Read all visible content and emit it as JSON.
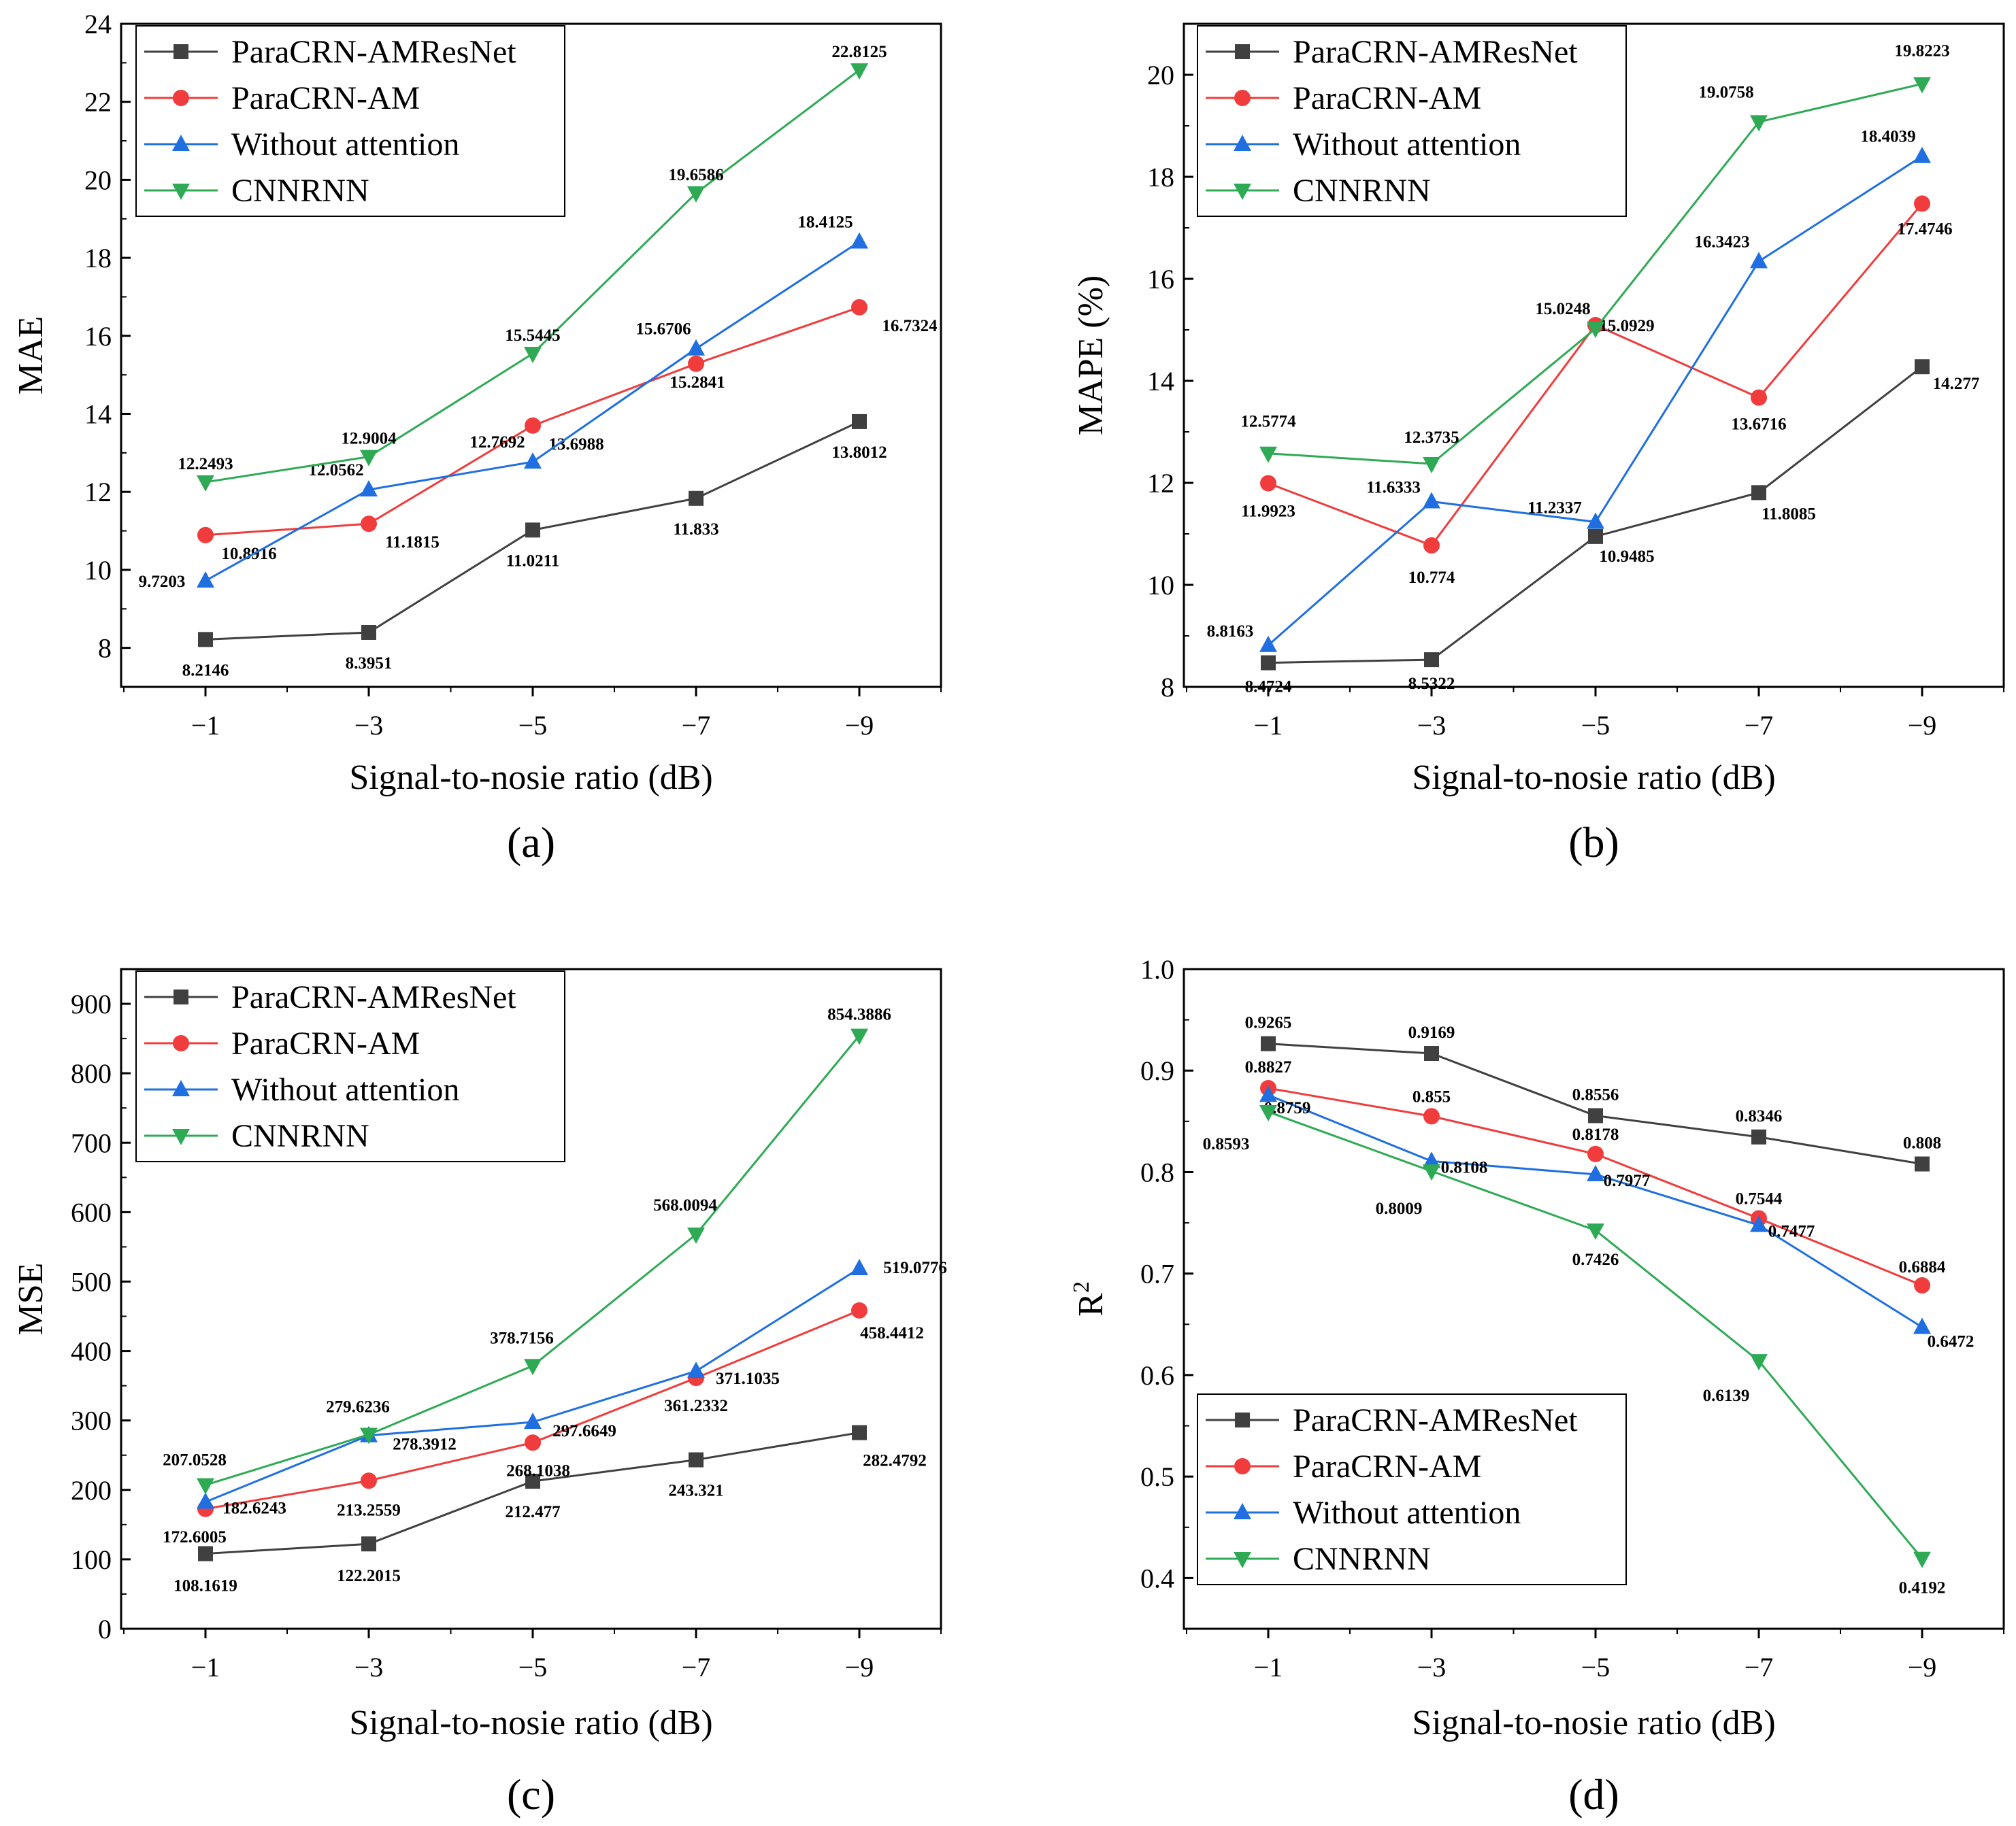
{
  "figure": {
    "series_styles": [
      {
        "name": "ParaCRN-AMResNet",
        "color": "#404040",
        "marker": "square"
      },
      {
        "name": "ParaCRN-AM",
        "color": "#f03c3c",
        "marker": "circle"
      },
      {
        "name": "Without attention",
        "color": "#1f6fe0",
        "marker": "triangle-up"
      },
      {
        "name": "CNNRNN",
        "color": "#2eaa55",
        "marker": "triangle-down"
      }
    ]
  },
  "chart_data": [
    {
      "type": "line",
      "panel_label": "(a)",
      "xlabel": "Signal-to-nosie ratio (dB)",
      "ylabel": "MAE",
      "ylabel_sup": "",
      "categories": [
        "−1",
        "−3",
        "−5",
        "−7",
        "−9"
      ],
      "ylim": [
        7,
        24
      ],
      "yticks": [
        8,
        10,
        12,
        14,
        16,
        18,
        20,
        22,
        24
      ],
      "ytick_labels": [
        "8",
        "10",
        "12",
        "14",
        "16",
        "18",
        "20",
        "22",
        "24"
      ],
      "legend_position": "top-left",
      "series": [
        {
          "name": "ParaCRN-AMResNet",
          "values": [
            8.2146,
            8.3951,
            11.0211,
            11.833,
            13.8012
          ],
          "labels": [
            "8.2146",
            "8.3951",
            "11.0211",
            "11.833",
            "13.8012"
          ]
        },
        {
          "name": "ParaCRN-AM",
          "values": [
            10.8916,
            11.1815,
            13.6988,
            15.2841,
            16.7324
          ],
          "labels": [
            "10.8916",
            "11.1815",
            "13.6988",
            "15.2841",
            "16.7324"
          ]
        },
        {
          "name": "Without attention",
          "values": [
            9.7203,
            12.0562,
            12.7692,
            15.6706,
            18.4125
          ],
          "labels": [
            "9.7203",
            "12.0562",
            "12.7692",
            "15.6706",
            "18.4125"
          ]
        },
        {
          "name": "CNNRNN",
          "values": [
            12.2493,
            12.9004,
            15.5445,
            19.6586,
            22.8125
          ],
          "labels": [
            "12.2493",
            "12.9004",
            "15.5445",
            "19.6586",
            "22.8125"
          ]
        }
      ]
    },
    {
      "type": "line",
      "panel_label": "(b)",
      "xlabel": "Signal-to-nosie ratio (dB)",
      "ylabel": "MAPE (%)",
      "ylabel_sup": "",
      "categories": [
        "−1",
        "−3",
        "−5",
        "−7",
        "−9"
      ],
      "ylim": [
        8,
        21
      ],
      "yticks": [
        8,
        10,
        12,
        14,
        16,
        18,
        20
      ],
      "ytick_labels": [
        "8",
        "10",
        "12",
        "14",
        "16",
        "18",
        "20"
      ],
      "legend_position": "top-left",
      "series": [
        {
          "name": "ParaCRN-AMResNet",
          "values": [
            8.4724,
            8.5322,
            10.9485,
            11.8085,
            14.277
          ],
          "labels": [
            "8.4724",
            "8.5322",
            "10.9485",
            "11.8085",
            "14.277"
          ]
        },
        {
          "name": "ParaCRN-AM",
          "values": [
            11.9923,
            10.774,
            15.0929,
            13.6716,
            17.4746
          ],
          "labels": [
            "11.9923",
            "10.774",
            "15.0929",
            "13.6716",
            "17.4746"
          ]
        },
        {
          "name": "Without attention",
          "values": [
            8.8163,
            11.6333,
            11.2337,
            16.3423,
            18.4039
          ],
          "labels": [
            "8.8163",
            "11.6333",
            "11.2337",
            "16.3423",
            "18.4039"
          ]
        },
        {
          "name": "CNNRNN",
          "values": [
            12.5774,
            12.3735,
            15.0248,
            19.0758,
            19.8223
          ],
          "labels": [
            "12.5774",
            "12.3735",
            "15.0248",
            "19.0758",
            "19.8223"
          ]
        }
      ]
    },
    {
      "type": "line",
      "panel_label": "(c)",
      "xlabel": "Signal-to-nosie ratio (dB)",
      "ylabel": "MSE",
      "ylabel_sup": "",
      "categories": [
        "−1",
        "−3",
        "−5",
        "−7",
        "−9"
      ],
      "ylim": [
        0,
        950
      ],
      "yticks": [
        0,
        100,
        200,
        300,
        400,
        500,
        600,
        700,
        800,
        900
      ],
      "ytick_labels": [
        "0",
        "100",
        "200",
        "300",
        "400",
        "500",
        "600",
        "700",
        "800",
        "900"
      ],
      "legend_position": "top-left",
      "series": [
        {
          "name": "ParaCRN-AMResNet",
          "values": [
            108.1619,
            122.2015,
            212.477,
            243.321,
            282.4792
          ],
          "labels": [
            "108.1619",
            "122.2015",
            "212.477",
            "243.321",
            "282.4792"
          ]
        },
        {
          "name": "ParaCRN-AM",
          "values": [
            172.6005,
            213.2559,
            268.1038,
            361.2332,
            458.4412
          ],
          "labels": [
            "172.6005",
            "213.2559",
            "268.1038",
            "361.2332",
            "458.4412"
          ]
        },
        {
          "name": "Without attention",
          "values": [
            182.6243,
            278.3912,
            297.6649,
            371.1035,
            519.0776
          ],
          "labels": [
            "182.6243",
            "278.3912",
            "297.6649",
            "371.1035",
            "519.0776"
          ]
        },
        {
          "name": "CNNRNN",
          "values": [
            207.0528,
            279.6236,
            378.7156,
            568.0094,
            854.3886
          ],
          "labels": [
            "207.0528",
            "279.6236",
            "378.7156",
            "568.0094",
            "854.3886"
          ]
        }
      ]
    },
    {
      "type": "line",
      "panel_label": "(d)",
      "xlabel": "Signal-to-nosie ratio (dB)",
      "ylabel": "R",
      "ylabel_sup": "2",
      "categories": [
        "−1",
        "−3",
        "−5",
        "−7",
        "−9"
      ],
      "ylim": [
        0.35,
        1.0
      ],
      "yticks": [
        0.4,
        0.5,
        0.6,
        0.7,
        0.8,
        0.9,
        1.0
      ],
      "ytick_labels": [
        "0.4",
        "0.5",
        "0.6",
        "0.7",
        "0.8",
        "0.9",
        "1.0"
      ],
      "legend_position": "bottom-left",
      "series": [
        {
          "name": "ParaCRN-AMResNet",
          "values": [
            0.9265,
            0.9169,
            0.8556,
            0.8346,
            0.808
          ],
          "labels": [
            "0.9265",
            "0.9169",
            "0.8556",
            "0.8346",
            "0.808"
          ]
        },
        {
          "name": "ParaCRN-AM",
          "values": [
            0.8827,
            0.855,
            0.8178,
            0.7544,
            0.6884
          ],
          "labels": [
            "0.8827",
            "0.855",
            "0.8178",
            "0.7544",
            "0.6884"
          ]
        },
        {
          "name": "Without attention",
          "values": [
            0.8759,
            0.8108,
            0.7977,
            0.7477,
            0.6472
          ],
          "labels": [
            "0.8759",
            "0.8108",
            "0.7977",
            "0.7477",
            "0.6472"
          ]
        },
        {
          "name": "CNNRNN",
          "values": [
            0.8593,
            0.8009,
            0.7426,
            0.6139,
            0.4192
          ],
          "labels": [
            "0.8593",
            "0.8009",
            "0.7426",
            "0.6139",
            "0.4192"
          ]
        }
      ]
    }
  ]
}
